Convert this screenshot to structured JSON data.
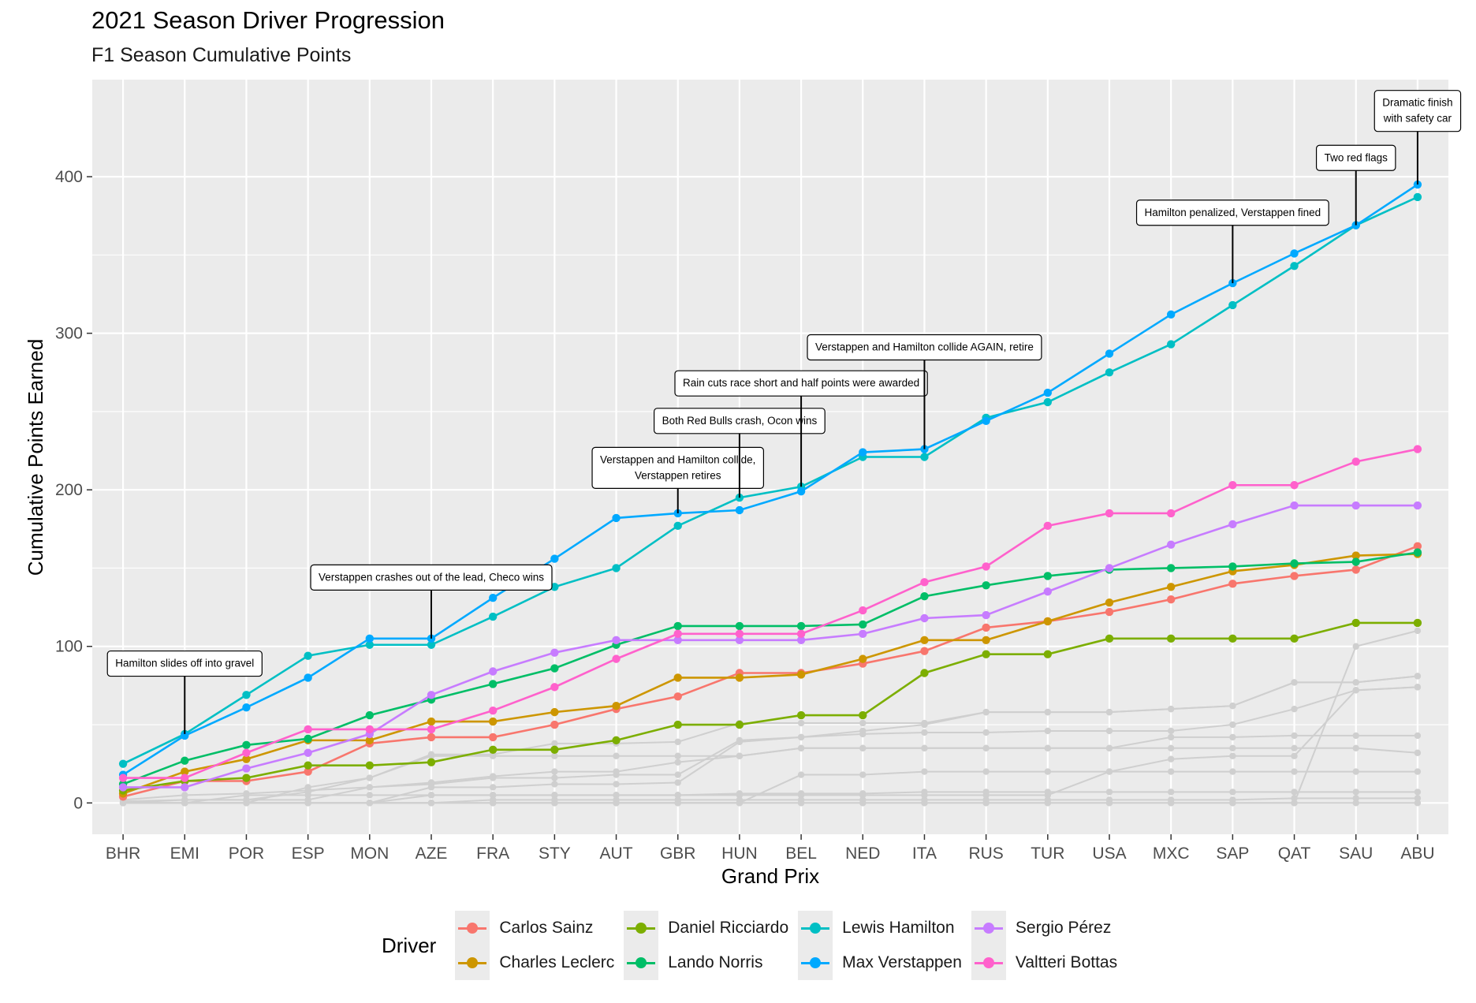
{
  "chart_data": {
    "type": "line",
    "title": "2021 Season Driver Progression",
    "subtitle": "F1 Season Cumulative Points",
    "xlabel": "Grand Prix",
    "ylabel": "Cumulative Points Earned",
    "legend_title": "Driver",
    "legend_position": "bottom",
    "grid": true,
    "ylim": [
      -20,
      462
    ],
    "yticks": [
      0,
      100,
      200,
      300,
      400
    ],
    "categories": [
      "BHR",
      "EMI",
      "POR",
      "ESP",
      "MON",
      "AZE",
      "FRA",
      "STY",
      "AUT",
      "GBR",
      "HUN",
      "BEL",
      "NED",
      "ITA",
      "RUS",
      "TUR",
      "USA",
      "MXC",
      "SAP",
      "QAT",
      "SAU",
      "ABU"
    ],
    "series": [
      {
        "name": "Carlos Sainz",
        "color": "#F8766D",
        "values": [
          4,
          14,
          14,
          20,
          38,
          42,
          42,
          50,
          60,
          68,
          83,
          83,
          89,
          97,
          112,
          116,
          122,
          130,
          140,
          145,
          149,
          164
        ]
      },
      {
        "name": "Charles Leclerc",
        "color": "#CD9600",
        "values": [
          6,
          20,
          28,
          40,
          40,
          52,
          52,
          58,
          62,
          80,
          80,
          82,
          92,
          104,
          104,
          116,
          128,
          138,
          148,
          152,
          158,
          159
        ]
      },
      {
        "name": "Daniel Ricciardo",
        "color": "#7CAE00",
        "values": [
          8,
          14,
          16,
          24,
          24,
          26,
          34,
          34,
          40,
          50,
          50,
          56,
          56,
          83,
          95,
          95,
          105,
          105,
          105,
          105,
          115,
          115
        ]
      },
      {
        "name": "Lando Norris",
        "color": "#00BE67",
        "values": [
          12,
          27,
          37,
          41,
          56,
          66,
          76,
          86,
          101,
          113,
          113,
          113,
          114,
          132,
          139,
          145,
          149,
          150,
          151,
          153,
          154,
          160
        ]
      },
      {
        "name": "Lewis Hamilton",
        "color": "#00BFC4",
        "values": [
          25,
          44,
          69,
          94,
          101,
          101,
          119,
          138,
          150,
          177,
          195,
          202,
          221,
          221,
          246,
          256,
          275,
          293,
          318,
          343,
          369,
          387
        ]
      },
      {
        "name": "Max Verstappen",
        "color": "#00A9FF",
        "values": [
          18,
          43,
          61,
          80,
          105,
          105,
          131,
          156,
          182,
          185,
          187,
          199,
          224,
          226,
          244,
          262,
          287,
          312,
          332,
          351,
          369,
          395
        ]
      },
      {
        "name": "Sergio Pérez",
        "color": "#C77CFF",
        "values": [
          10,
          10,
          22,
          32,
          44,
          69,
          84,
          96,
          104,
          104,
          104,
          104,
          108,
          118,
          120,
          135,
          150,
          165,
          178,
          190,
          190,
          190
        ]
      },
      {
        "name": "Valtteri Bottas",
        "color": "#FF61CC",
        "values": [
          16,
          16,
          32,
          47,
          47,
          47,
          59,
          74,
          92,
          108,
          108,
          108,
          123,
          141,
          151,
          177,
          185,
          185,
          203,
          203,
          218,
          226
        ]
      }
    ],
    "other_series": [
      {
        "values": [
          0,
          0,
          0,
          10,
          16,
          31,
          31,
          38,
          38,
          39,
          51,
          51,
          51,
          51,
          58,
          58,
          58,
          60,
          62,
          77,
          77,
          81
        ]
      },
      {
        "values": [
          0,
          0,
          0,
          0,
          0,
          10,
          10,
          12,
          12,
          13,
          39,
          42,
          46,
          50,
          58,
          58,
          58,
          60,
          62,
          77,
          77,
          81
        ]
      },
      {
        "values": [
          2,
          5,
          6,
          8,
          10,
          12,
          16,
          16,
          18,
          18,
          40,
          42,
          44,
          45,
          45,
          46,
          46,
          46,
          50,
          60,
          72,
          74
        ]
      },
      {
        "values": [
          0,
          0,
          0,
          0,
          0,
          0,
          0,
          0,
          0,
          0,
          0,
          18,
          18,
          20,
          20,
          20,
          20,
          28,
          30,
          30,
          72,
          74
        ]
      },
      {
        "values": [
          0,
          2,
          2,
          7,
          16,
          30,
          30,
          30,
          30,
          30,
          30,
          35,
          35,
          35,
          35,
          35,
          35,
          42,
          42,
          43,
          43,
          43
        ]
      },
      {
        "values": [
          0,
          0,
          0,
          0,
          0,
          0,
          0,
          0,
          0,
          0,
          0,
          0,
          0,
          0,
          0,
          0,
          0,
          0,
          0,
          0,
          100,
          110
        ]
      },
      {
        "values": [
          1,
          2,
          2,
          2,
          10,
          13,
          17,
          20,
          20,
          26,
          30,
          35,
          35,
          35,
          35,
          35,
          35,
          35,
          35,
          35,
          35,
          32
        ]
      },
      {
        "values": [
          0,
          0,
          0,
          0,
          0,
          5,
          5,
          5,
          5,
          5,
          5,
          5,
          5,
          5,
          5,
          5,
          20,
          20,
          20,
          20,
          20,
          20
        ]
      },
      {
        "values": [
          0,
          0,
          5,
          5,
          5,
          5,
          5,
          5,
          5,
          5,
          6,
          6,
          6,
          7,
          7,
          7,
          7,
          7,
          7,
          7,
          7,
          7
        ]
      },
      {
        "values": [
          0,
          0,
          0,
          0,
          0,
          0,
          2,
          2,
          2,
          2,
          2,
          2,
          2,
          2,
          2,
          2,
          2,
          2,
          2,
          3,
          3,
          3
        ]
      },
      {
        "values": [
          0,
          0,
          0,
          0,
          0,
          0,
          0,
          0,
          0,
          0,
          0,
          0,
          0,
          0,
          0,
          0,
          0,
          0,
          0,
          0,
          0,
          0
        ]
      }
    ],
    "annotations": [
      {
        "x": "EMI",
        "y": 44,
        "label_y": 89,
        "text": [
          "Hamilton slides off into gravel"
        ]
      },
      {
        "x": "AZE",
        "y": 105,
        "label_y": 144,
        "text": [
          "Verstappen crashes out of the lead, Checo wins"
        ]
      },
      {
        "x": "GBR",
        "y": 185,
        "label_y": 214,
        "text": [
          "Verstappen and Hamilton collide,",
          "Verstappen retires"
        ]
      },
      {
        "x": "HUN",
        "y": 195,
        "label_y": 244,
        "text": [
          "Both Red Bulls crash, Ocon wins"
        ]
      },
      {
        "x": "BEL",
        "y": 202,
        "label_y": 268,
        "text": [
          "Rain cuts race short and half points were awarded"
        ]
      },
      {
        "x": "ITA",
        "y": 226,
        "label_y": 291,
        "text": [
          "Verstappen and Hamilton collide AGAIN, retire"
        ]
      },
      {
        "x": "SAP",
        "y": 332,
        "label_y": 377,
        "text": [
          "Hamilton penalized, Verstappen fined"
        ]
      },
      {
        "x": "SAU",
        "y": 369,
        "label_y": 412,
        "text": [
          "Two red flags"
        ]
      },
      {
        "x": "ABU",
        "y": 395,
        "label_y": 442,
        "text": [
          "Dramatic finish",
          "with safety car"
        ]
      }
    ]
  }
}
